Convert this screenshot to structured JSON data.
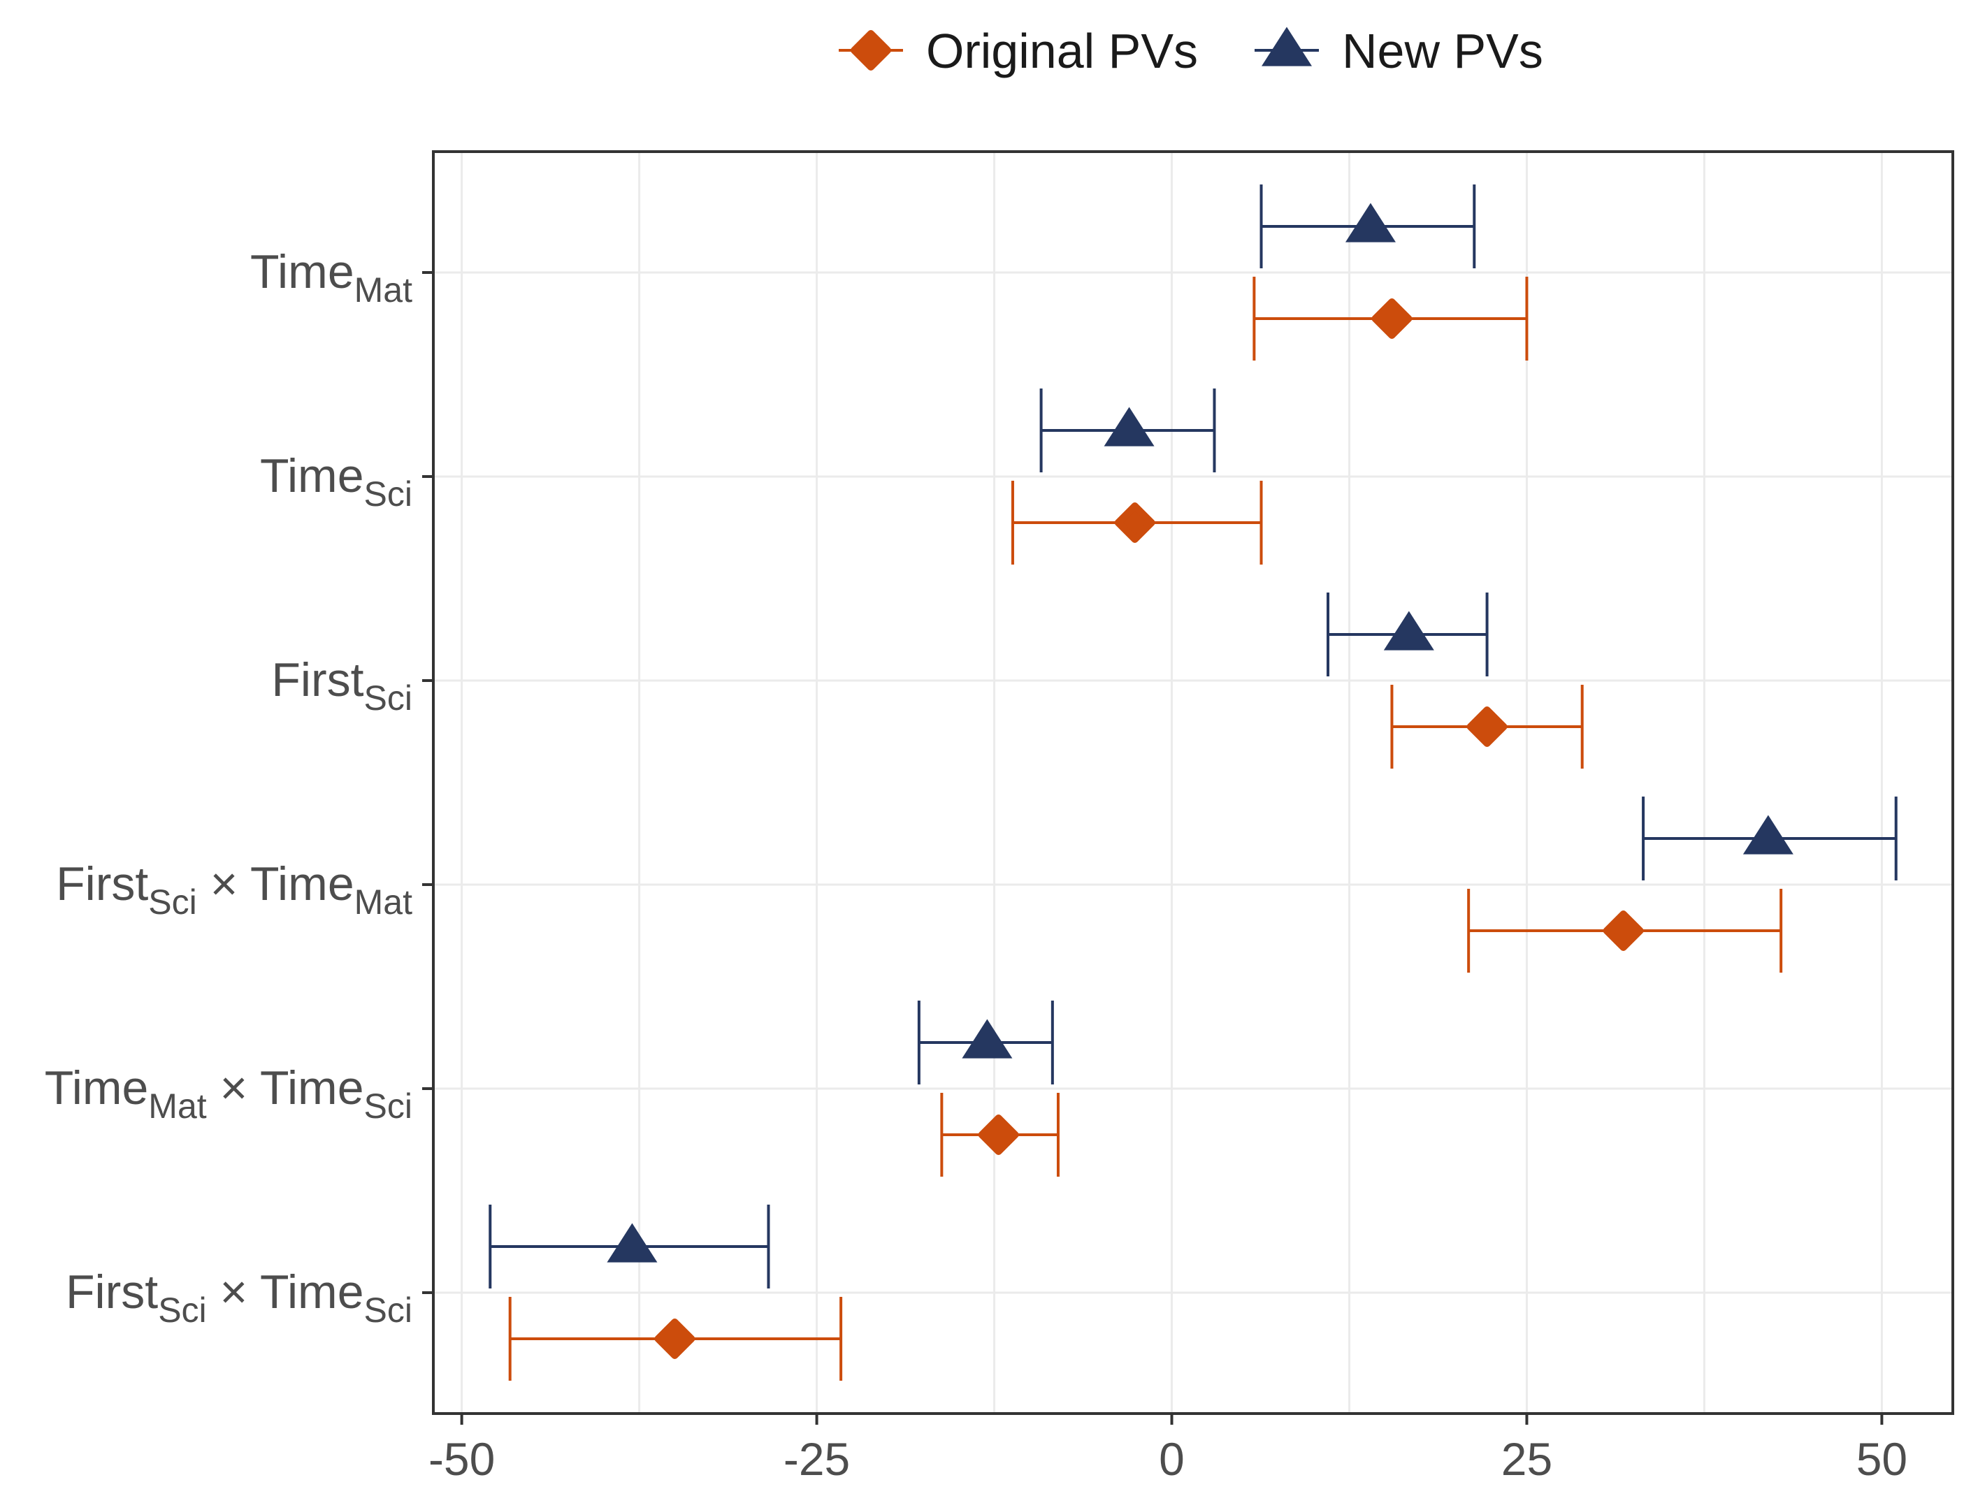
{
  "chart_data": {
    "type": "dot-whisker",
    "title": "",
    "xlabel": "",
    "ylabel": "",
    "xlim": [
      -52,
      55
    ],
    "x_ticks": [
      -50,
      -25,
      0,
      25,
      50
    ],
    "x_tick_labels": [
      "-50",
      "-25",
      "0",
      "25",
      "50"
    ],
    "grid": true,
    "legend_position": "top",
    "categories": [
      {
        "base": "Time",
        "sub": "Mat",
        "mid": "",
        "base2": "",
        "sub2": ""
      },
      {
        "base": "Time",
        "sub": "Sci",
        "mid": "",
        "base2": "",
        "sub2": ""
      },
      {
        "base": "First",
        "sub": "Sci",
        "mid": "",
        "base2": "",
        "sub2": ""
      },
      {
        "base": "First",
        "sub": "Sci",
        "mid": " × ",
        "base2": "Time",
        "sub2": "Mat"
      },
      {
        "base": "Time",
        "sub": "Mat",
        "mid": " × ",
        "base2": "Time",
        "sub2": "Sci"
      },
      {
        "base": "First",
        "sub": "Sci",
        "mid": " × ",
        "base2": "Time",
        "sub2": "Sci"
      }
    ],
    "series": [
      {
        "name": "New PVs",
        "color": "#253760",
        "marker": "triangle",
        "estimates": [
          14,
          -3,
          16.7,
          42,
          -13,
          -38
        ],
        "lower": [
          6.3,
          -9.2,
          11,
          33.2,
          -17.8,
          -48
        ],
        "upper": [
          21.3,
          3,
          22.2,
          51,
          -8.4,
          -28.4
        ]
      },
      {
        "name": "Original PVs",
        "color": "#cc4c0c",
        "marker": "diamond",
        "estimates": [
          15.5,
          -2.6,
          22.2,
          31.8,
          -12.2,
          -35
        ],
        "lower": [
          5.8,
          -11.2,
          15.5,
          20.9,
          -16.2,
          -46.6
        ],
        "upper": [
          25,
          6.3,
          28.9,
          42.9,
          -8,
          -23.3
        ]
      }
    ]
  }
}
